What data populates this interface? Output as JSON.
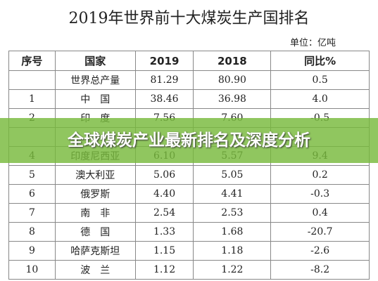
{
  "header": {
    "title": "2019年世界前十大煤炭生产国排名",
    "unit": "单位：亿吨"
  },
  "banner": "全球煤炭产业最新排名及深度分析",
  "table": {
    "columns": [
      "序号",
      "国家",
      "2019",
      "2018",
      "同比%"
    ],
    "rows": [
      [
        "",
        "世界总产量",
        "81.29",
        "80.90",
        "0.5"
      ],
      [
        "1",
        "中　国",
        "38.46",
        "36.98",
        "4.0"
      ],
      [
        "2",
        "印　度",
        "7.56",
        "7.60",
        "-0.5"
      ],
      [],
      [
        "4",
        "印度尼西亚",
        "6.10",
        "5.57",
        "9.4"
      ],
      [
        "5",
        "澳大利亚",
        "5.06",
        "5.05",
        "0.2"
      ],
      [
        "6",
        "俄罗斯",
        "4.40",
        "4.41",
        "-0.3"
      ],
      [
        "7",
        "南　非",
        "2.54",
        "2.53",
        "0.4"
      ],
      [
        "8",
        "德　国",
        "1.33",
        "1.68",
        "-20.7"
      ],
      [
        "9",
        "哈萨克斯坦",
        "1.15",
        "1.18",
        "-2.6"
      ],
      [
        "10",
        "波　兰",
        "1.12",
        "1.22",
        "-8.2"
      ]
    ]
  }
}
